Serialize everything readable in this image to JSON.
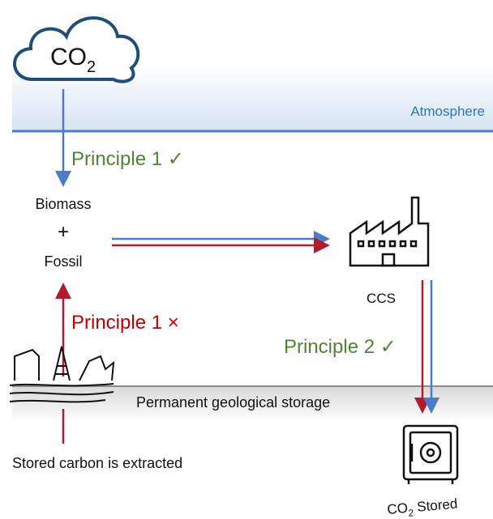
{
  "cloud_label": {
    "main": "CO",
    "sub": "2"
  },
  "atmosphere_label": "Atmosphere",
  "principle_1_ok": "Principle 1 ✓",
  "source": {
    "top": "Biomass",
    "plus": "+",
    "bottom": "Fossil"
  },
  "ccs_label": "CCS",
  "principle_1_bad": "Principle 1 ×",
  "principle_2_ok": "Principle 2 ✓",
  "storage_label": "Permanent geological storage",
  "extracted_label": "Stored carbon is extracted",
  "stored_label": {
    "main": "CO",
    "sub": "2",
    "rest": " Stored"
  }
}
